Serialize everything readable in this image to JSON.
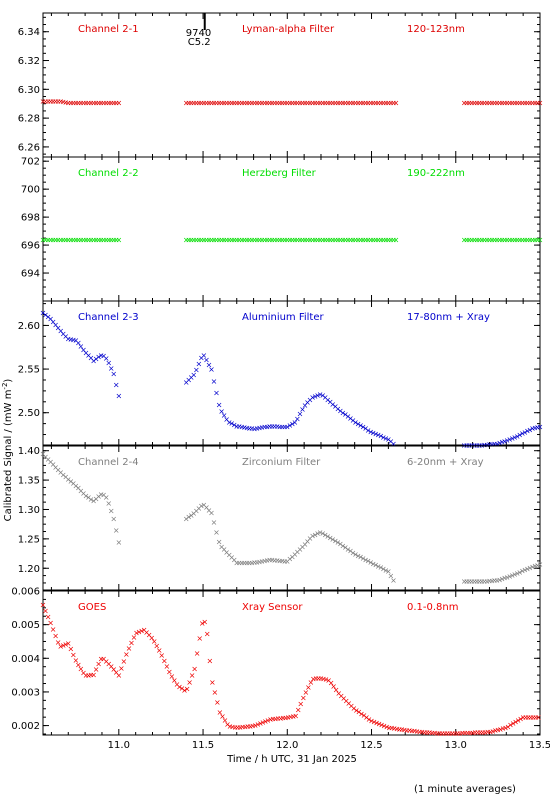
{
  "chart_data": {
    "type": "scatter",
    "xlabel": "Time / h UTC, 31 Jan 2025",
    "ylabel": "Calibrated Signal / (mW m",
    "ylabel_sup": "-2",
    "ylabel_close": ")",
    "footnote": "(1 minute averages)",
    "xlim": [
      10.55,
      13.5
    ],
    "xticks": [
      "11.0",
      "11.5",
      "12.0",
      "12.5",
      "13.0",
      "13.5"
    ],
    "xtick_values": [
      11.0,
      11.5,
      12.0,
      12.5,
      13.0,
      13.5
    ],
    "flare": {
      "time": 11.51,
      "class": "C5.2",
      "id": "9740"
    },
    "panels": [
      {
        "channel": "Channel 2-1",
        "filter": "Lyman-alpha Filter",
        "band": "120-123nm",
        "color": "#dd0000",
        "ylim": [
          6.253,
          6.353
        ],
        "yticks": [
          "6.34",
          "6.32",
          "6.30",
          "6.28",
          "6.26"
        ],
        "ytick_values": [
          6.34,
          6.32,
          6.3,
          6.28,
          6.26
        ],
        "series": [
          {
            "x": [
              10.55,
              10.6,
              10.65,
              10.7,
              10.75,
              10.8,
              10.85,
              10.9,
              10.95,
              11.0
            ],
            "y": [
              6.292,
              6.292,
              6.292,
              6.291,
              6.291,
              6.291,
              6.291,
              6.291,
              6.291,
              6.291
            ]
          },
          {
            "x": [
              11.4,
              11.5,
              11.6,
              11.7,
              11.8,
              11.9,
              12.0,
              12.1,
              12.2,
              12.3,
              12.4,
              12.5,
              12.6,
              12.65
            ],
            "y": [
              6.291,
              6.291,
              6.291,
              6.291,
              6.291,
              6.291,
              6.291,
              6.291,
              6.291,
              6.291,
              6.291,
              6.291,
              6.291,
              6.291
            ]
          },
          {
            "x": [
              13.05,
              13.15,
              13.25,
              13.35,
              13.45,
              13.5
            ],
            "y": [
              6.291,
              6.291,
              6.291,
              6.291,
              6.291,
              6.291
            ]
          }
        ]
      },
      {
        "channel": "Channel 2-2",
        "filter": "Herzberg Filter",
        "band": "190-222nm",
        "color": "#00dd00",
        "ylim": [
          692.0,
          702.3
        ],
        "yticks": [
          "702",
          "700",
          "698",
          "696",
          "694"
        ],
        "ytick_values": [
          702,
          700,
          698,
          696,
          694
        ],
        "series": [
          {
            "x": [
              10.55,
              10.7,
              10.85,
              11.0
            ],
            "y": [
              696.4,
              696.4,
              696.4,
              696.4
            ]
          },
          {
            "x": [
              11.4,
              11.6,
              11.8,
              12.0,
              12.2,
              12.4,
              12.6,
              12.65
            ],
            "y": [
              696.4,
              696.4,
              696.4,
              696.4,
              696.4,
              696.4,
              696.4,
              696.4
            ]
          },
          {
            "x": [
              13.05,
              13.2,
              13.35,
              13.5
            ],
            "y": [
              696.4,
              696.4,
              696.4,
              696.4
            ]
          }
        ]
      },
      {
        "channel": "Channel 2-3",
        "filter": "Aluminium Filter",
        "band": "17-80nm + Xray",
        "color": "#0000cc",
        "ylim": [
          2.463,
          2.628
        ],
        "yticks": [
          "2.60",
          "2.55",
          "2.50"
        ],
        "ytick_values": [
          2.6,
          2.55,
          2.5
        ],
        "series": [
          {
            "x": [
              10.55,
              10.6,
              10.65,
              10.7,
              10.75,
              10.8,
              10.85,
              10.9,
              10.93,
              10.97,
              11.0
            ],
            "y": [
              2.615,
              2.607,
              2.595,
              2.585,
              2.583,
              2.57,
              2.56,
              2.567,
              2.562,
              2.545,
              2.52
            ]
          },
          {
            "x": [
              11.4,
              11.45,
              11.5,
              11.55,
              11.6,
              11.65,
              11.7,
              11.8,
              11.9,
              12.0,
              12.05,
              12.1,
              12.15,
              12.2,
              12.3,
              12.4,
              12.5,
              12.6,
              12.63
            ],
            "y": [
              2.535,
              2.545,
              2.568,
              2.55,
              2.505,
              2.49,
              2.485,
              2.482,
              2.485,
              2.484,
              2.49,
              2.508,
              2.518,
              2.522,
              2.505,
              2.49,
              2.478,
              2.47,
              2.465
            ]
          },
          {
            "x": [
              13.05,
              13.15,
              13.25,
              13.35,
              13.45,
              13.5
            ],
            "y": [
              2.463,
              2.463,
              2.465,
              2.472,
              2.482,
              2.484
            ]
          }
        ]
      },
      {
        "channel": "Channel 2-4",
        "filter": "Zirconium Filter",
        "band": "6-20nm + Xray",
        "color": "#808080",
        "ylim": [
          1.163,
          1.408
        ],
        "yticks": [
          "1.40",
          "1.35",
          "1.30",
          "1.25",
          "1.20"
        ],
        "ytick_values": [
          1.4,
          1.35,
          1.3,
          1.25,
          1.2
        ],
        "series": [
          {
            "x": [
              10.55,
              10.6,
              10.65,
              10.7,
              10.75,
              10.8,
              10.85,
              10.9,
              10.93,
              10.97,
              11.0
            ],
            "y": [
              1.395,
              1.38,
              1.365,
              1.352,
              1.34,
              1.325,
              1.315,
              1.328,
              1.32,
              1.285,
              1.245
            ]
          },
          {
            "x": [
              11.4,
              11.45,
              11.5,
              11.55,
              11.6,
              11.7,
              11.8,
              11.9,
              12.0,
              12.1,
              12.15,
              12.2,
              12.3,
              12.4,
              12.5,
              12.6,
              12.63
            ],
            "y": [
              1.285,
              1.295,
              1.31,
              1.295,
              1.24,
              1.21,
              1.21,
              1.215,
              1.212,
              1.24,
              1.256,
              1.262,
              1.245,
              1.225,
              1.21,
              1.195,
              1.18
            ]
          },
          {
            "x": [
              13.05,
              13.15,
              13.25,
              13.35,
              13.45,
              13.5
            ],
            "y": [
              1.178,
              1.178,
              1.18,
              1.19,
              1.203,
              1.207
            ]
          }
        ]
      },
      {
        "channel": "GOES",
        "filter": "Xray Sensor",
        "band": "0.1-0.8nm",
        "color": "#ee0000",
        "ylim": [
          0.00172,
          0.006
        ],
        "yticks": [
          "0.006",
          "0.005",
          "0.004",
          "0.003",
          "0.002"
        ],
        "ytick_values": [
          0.006,
          0.005,
          0.004,
          0.003,
          0.002
        ],
        "series": [
          {
            "x": [
              10.55,
              10.6,
              10.65,
              10.7,
              10.75,
              10.8,
              10.85,
              10.9,
              10.95,
              11.0,
              11.05,
              11.1,
              11.15,
              11.2,
              11.25,
              11.3,
              11.35,
              11.4,
              11.45,
              11.5,
              11.52,
              11.55,
              11.6,
              11.65,
              11.7,
              11.8,
              11.9,
              12.0,
              12.05,
              12.1,
              12.15,
              12.2,
              12.25,
              12.3,
              12.4,
              12.5,
              12.6,
              12.7,
              12.8,
              12.9,
              13.0,
              13.1,
              13.2,
              13.3,
              13.4,
              13.5
            ],
            "y": [
              0.0056,
              0.005,
              0.00435,
              0.00445,
              0.0039,
              0.0035,
              0.00352,
              0.00405,
              0.0038,
              0.0035,
              0.0042,
              0.00475,
              0.00485,
              0.0046,
              0.00415,
              0.0036,
              0.0032,
              0.00303,
              0.0037,
              0.0052,
              0.005,
              0.0034,
              0.0024,
              0.002,
              0.00195,
              0.002,
              0.0022,
              0.00225,
              0.0023,
              0.0029,
              0.0034,
              0.00342,
              0.00335,
              0.003,
              0.0025,
              0.00215,
              0.00195,
              0.00188,
              0.00182,
              0.00178,
              0.00178,
              0.0018,
              0.00182,
              0.00195,
              0.00225,
              0.00225
            ]
          }
        ]
      }
    ]
  }
}
